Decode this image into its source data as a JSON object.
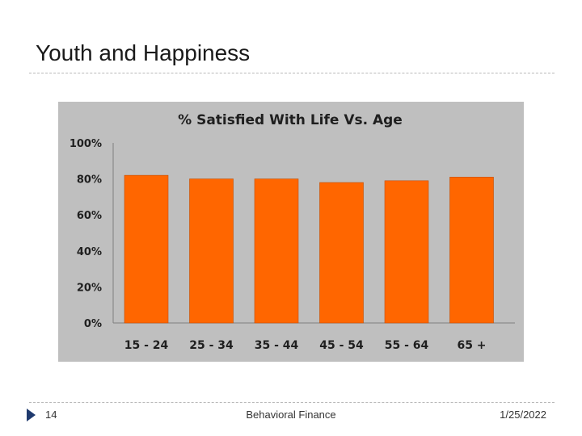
{
  "slide": {
    "title": "Youth and Happiness",
    "page_number": "14",
    "footer_text": "Behavioral Finance",
    "date": "1/25/2022"
  },
  "colors": {
    "bar": "#ff6600",
    "plot_bg": "#bfbfbf",
    "text": "#1f1f1f",
    "footer_arrow": "#1f3a6e"
  },
  "chart_data": {
    "type": "bar",
    "title": "% Satisfied With Life Vs. Age",
    "categories": [
      "15 - 24",
      "25 - 34",
      "35 - 44",
      "45 - 54",
      "55 - 64",
      "65 +"
    ],
    "values": [
      82,
      80,
      80,
      78,
      79,
      81
    ],
    "ylim": [
      0,
      100
    ],
    "yticks": [
      "0%",
      "20%",
      "40%",
      "60%",
      "80%",
      "100%"
    ],
    "xlabel": "",
    "ylabel": ""
  }
}
